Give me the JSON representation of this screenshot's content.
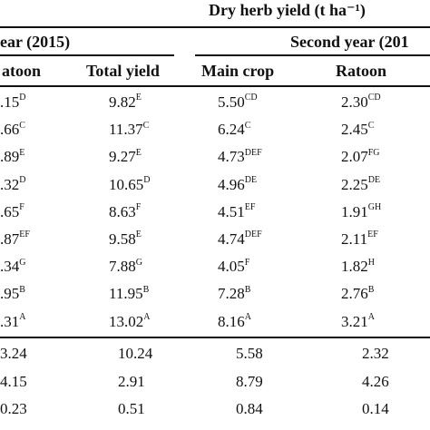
{
  "table": {
    "super_header": "Dry herb yield (t ha⁻¹)",
    "first_year_header": "ear (2015)",
    "second_year_header": "Second year (201",
    "columns": [
      "atoon",
      "Total yield",
      "Main crop",
      "Ratoon"
    ],
    "rows": [
      {
        "c1": ".15",
        "c1s": "D",
        "c2": "9.82",
        "c2s": "E",
        "c3": "5.50",
        "c3s": "CD",
        "c4": "2.30",
        "c4s": "CD"
      },
      {
        "c1": ".66",
        "c1s": "C",
        "c2": "11.37",
        "c2s": "C",
        "c3": "6.24",
        "c3s": "C",
        "c4": "2.45",
        "c4s": "C"
      },
      {
        "c1": ".89",
        "c1s": "E",
        "c2": "9.27",
        "c2s": "E",
        "c3": "4.73",
        "c3s": "DEF",
        "c4": "2.07",
        "c4s": "FG"
      },
      {
        "c1": ".32",
        "c1s": "D",
        "c2": "10.65",
        "c2s": "D",
        "c3": "4.96",
        "c3s": "DE",
        "c4": "2.25",
        "c4s": "DE"
      },
      {
        "c1": ".65",
        "c1s": "F",
        "c2": "8.63",
        "c2s": "F",
        "c3": "4.51",
        "c3s": "EF",
        "c4": "1.91",
        "c4s": "GH"
      },
      {
        "c1": ".87",
        "c1s": "EF",
        "c2": "9.58",
        "c2s": "E",
        "c3": "4.74",
        "c3s": "DEF",
        "c4": "2.11",
        "c4s": "EF"
      },
      {
        "c1": ".34",
        "c1s": "G",
        "c2": "7.88",
        "c2s": "G",
        "c3": "4.05",
        "c3s": "F",
        "c4": "1.82",
        "c4s": "H"
      },
      {
        "c1": ".95",
        "c1s": "B",
        "c2": "11.95",
        "c2s": "B",
        "c3": "7.28",
        "c3s": "B",
        "c4": "2.76",
        "c4s": "B"
      },
      {
        "c1": ".31",
        "c1s": "A",
        "c2": "13.02",
        "c2s": "A",
        "c3": "8.16",
        "c3s": "A",
        "c4": "3.21",
        "c4s": "A"
      }
    ],
    "stats": [
      {
        "c1": "3.24",
        "c2": "10.24",
        "c3": "5.58",
        "c4": "2.32"
      },
      {
        "c1": "4.15",
        "c2": "2.91",
        "c3": "8.79",
        "c4": "4.26"
      },
      {
        "c1": "0.23",
        "c2": "0.51",
        "c3": "0.84",
        "c4": "0.14"
      }
    ]
  }
}
